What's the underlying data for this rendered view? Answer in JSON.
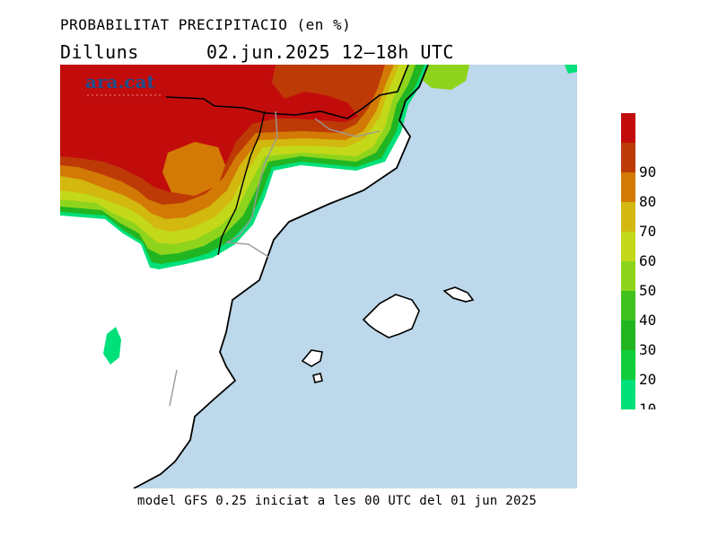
{
  "header": {
    "title": "PROBABILITAT PRECIPITACIO (en %)",
    "day": "Dilluns",
    "date": "02.jun.2025",
    "period": "12–18h UTC"
  },
  "footer": {
    "text": "model GFS 0.25 iniciat a les 00 UTC del 01 jun 2025"
  },
  "watermark": {
    "text": "ara.cat"
  },
  "legend": {
    "items": [
      {
        "value": "10",
        "color": "#00e07a"
      },
      {
        "value": "20",
        "color": "#12cc3a"
      },
      {
        "value": "30",
        "color": "#22b522"
      },
      {
        "value": "40",
        "color": "#3fc21e"
      },
      {
        "value": "50",
        "color": "#8fd41c"
      },
      {
        "value": "60",
        "color": "#c4d81a"
      },
      {
        "value": "70",
        "color": "#d2b80f"
      },
      {
        "value": "80",
        "color": "#d27a05"
      },
      {
        "value": "90",
        "color": "#bd3a06"
      },
      {
        "value": "",
        "color": "#c20c0c"
      }
    ]
  },
  "colors": {
    "sea": "#bcd8ea",
    "land": "#ffffff",
    "coast": "#000000",
    "border": "#9a9a9a"
  }
}
